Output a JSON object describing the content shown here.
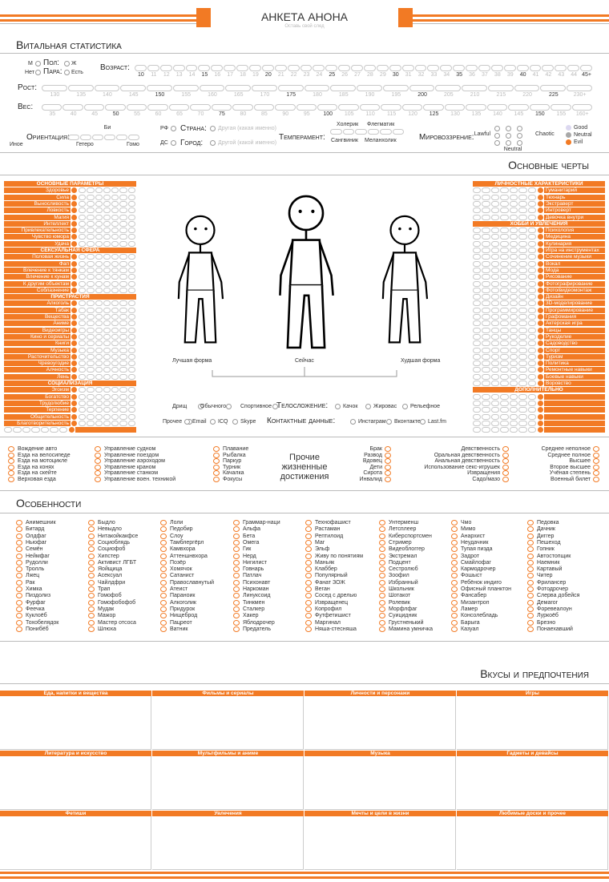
{
  "header": {
    "title": "АНКЕТА АНОНА",
    "subtitle": "Оставь свой след"
  },
  "vital": {
    "title": "Витальная статистика",
    "sex": {
      "label": "Пол:",
      "options": [
        "М",
        "Ж"
      ]
    },
    "pair": {
      "label": "Пара:",
      "options": [
        "Нет",
        "Есть"
      ]
    },
    "age": {
      "label": "Возраст:",
      "ticks": [
        10,
        11,
        12,
        13,
        14,
        15,
        16,
        17,
        18,
        19,
        20,
        21,
        22,
        23,
        24,
        25,
        26,
        27,
        28,
        29,
        30,
        31,
        32,
        33,
        34,
        35,
        36,
        37,
        38,
        39,
        40,
        41,
        42,
        43,
        44,
        "45+"
      ]
    },
    "height": {
      "label": "Рост:",
      "ticks": [
        130,
        135,
        140,
        145,
        150,
        155,
        160,
        165,
        170,
        175,
        180,
        185,
        190,
        195,
        200,
        205,
        210,
        215,
        220,
        225,
        "230+"
      ]
    },
    "weight": {
      "label": "Вес:",
      "ticks": [
        35,
        40,
        45,
        50,
        55,
        60,
        65,
        70,
        75,
        80,
        85,
        90,
        95,
        100,
        105,
        110,
        115,
        120,
        125,
        130,
        135,
        140,
        145,
        150,
        155,
        "160+"
      ]
    },
    "orientation": {
      "label": "Ориентация:",
      "options": [
        "Би",
        "Иное",
        "Гетеро",
        "Гомо"
      ]
    },
    "country": {
      "label": "Страна:",
      "options": [
        "РФ",
        "Другая (какая именно)"
      ]
    },
    "city": {
      "label": "Город:",
      "options": [
        "ДС",
        "Другой (какой именно)"
      ]
    },
    "temperament": {
      "label": "Темперамент:",
      "options": [
        "Холерик",
        "Флегматик",
        "Сангвиник",
        "Меланхолик"
      ]
    },
    "alignment": {
      "label": "Мировоззрение:",
      "axis": [
        "Lawful",
        "Chaotic",
        "Neutral"
      ],
      "morals": [
        "Good",
        "Neutral",
        "Evil"
      ]
    }
  },
  "traits": {
    "title": "Основные черты",
    "left": [
      {
        "header": "ОСНОВНЫЕ ПАРАМЕТРЫ",
        "items": [
          "Здоровье",
          "Сила",
          "Выносливость",
          "Ловкость",
          "Магия",
          "Интеллект",
          "Привлекательность",
          "Чувство юмора",
          "Удача"
        ]
      },
      {
        "header": "СЕКСУАЛЬНАЯ СФЕРА",
        "items": [
          "Половая жизнь",
          "Фап",
          "Влечение к тянкам",
          "Влечение к кунам",
          "К другим объектам",
          "Соблазнение"
        ]
      },
      {
        "header": "ПРИСТРАСТИЯ",
        "items": [
          "Алкоголь",
          "Табак",
          "Вещества",
          "Аниме",
          "Видеоигры",
          "Кино и сериалы",
          "Книги",
          "Музыка",
          "Расточительство",
          "Чревоугодие",
          "Алчность",
          "Лень"
        ]
      },
      {
        "header": "СОЦИАЛИЗАЦИЯ",
        "items": [
          "Эгоизм",
          "Богатство",
          "Трудолюбие",
          "Терпение",
          "Общительность",
          "Благотворительность"
        ]
      }
    ],
    "right": [
      {
        "header": "ЛИЧНОСТНЫЕ ХАРАКТЕРИСТИКИ",
        "items": [
          "Гуманитарий",
          "Технарь",
          "Экстраверт",
          "Интроверт",
          "Девочка внутри"
        ]
      },
      {
        "header": "ХОББИ И УВЛЕЧЕНИЯ",
        "items": [
          "Психология",
          "Медицина",
          "Кулинария",
          "Игра на инструментах",
          "Сочинение музыки",
          "Вокал",
          "Мода",
          "Рисование",
          "Фотографирование",
          "Фото/видеомонтаж",
          "Дизайн",
          "3D-моделирование",
          "Программирование",
          "Графомания",
          "Актерская игра",
          "Танцы",
          "Рукоделие",
          "Садоводство",
          "Спорт",
          "Туризм",
          "Политика",
          "Ремонтные навыки",
          "Боевые навыки",
          "Воровство"
        ]
      },
      {
        "header": "ДОПОЛНИТЕЛЬНО",
        "items": []
      }
    ],
    "figures": [
      "Лучшая форма",
      "Сейчас",
      "Худшая форма"
    ],
    "build": {
      "label": "Телосложение:",
      "options": [
        "Дрищ",
        "Обычного",
        "Спортивное",
        "Качок",
        "Жировас",
        "Рельефное"
      ]
    },
    "contacts": {
      "label": "Контактные данные:",
      "options": [
        "Прочее",
        "Email",
        "ICQ",
        "Skype",
        "Инстаграм",
        "Вконтакте",
        "Last.fm"
      ]
    }
  },
  "achievements": {
    "title": "Прочие жизненные достижения",
    "columns": [
      [
        "Вождение авто",
        "Езда на велосипеде",
        "Езда на мотоцикле",
        "Езда на конях",
        "Езда на скейте",
        "Верховая езда"
      ],
      [
        "Управление судном",
        "Управление поездом",
        "Управление аэроходом",
        "Управление краном",
        "Управление станком",
        "Управление воен. техникой"
      ],
      [
        "Плавание",
        "Рыбалка",
        "Паркур",
        "Турник",
        "Качалка",
        "Фокусы"
      ],
      [
        "Брак",
        "Развод",
        "Вдовец",
        "Дети",
        "Сирота",
        "Инвалид"
      ],
      [
        "Девственность",
        "Оральная девственность",
        "Анальная девственность",
        "Использование секс-игрушек",
        "Извращения",
        "Садо/мазо"
      ],
      [
        "Среднее неполное",
        "Среднее полное",
        "Высшее",
        "Второе высшее",
        "Учёная степень",
        "Военный билет"
      ]
    ]
  },
  "features": {
    "title": "Особенности",
    "columns": [
      [
        "Анимешник",
        "Битард",
        "Олдфаг",
        "Ньюфаг",
        "Семён",
        "Неймфаг",
        "Рудолли",
        "Тролль",
        "Лжец",
        "Рак",
        "Химка",
        "Пиздолиз",
        "Фурфаг",
        "Феечка",
        "Куклоёб",
        "Тохобелядок",
        "Понибёб"
      ],
      [
        "Быдло",
        "Невыдло",
        "Нитакойкакфсе",
        "Социоблядь",
        "Социофоб",
        "Хипстер",
        "Активист ЛГБТ",
        "Яойщица",
        "Асексуал",
        "Чайлдфри",
        "Трап",
        "Гомофоб",
        "Гомофобофоб",
        "Мудак",
        "Мажор",
        "Мастер отсоса",
        "Шлюха"
      ],
      [
        "Лоли",
        "Педобир",
        "Слоу",
        "Тамблергёрл",
        "Камвхора",
        "Аттеншнвхора",
        "Позёр",
        "Хомячок",
        "Сатанист",
        "Православнутый",
        "Атеист",
        "Параноик",
        "Алкоголик",
        "Придурок",
        "Нищеброд",
        "Пацреот",
        "Ватник"
      ],
      [
        "Граммар-наци",
        "Альфа",
        "Бета",
        "Омега",
        "Гик",
        "Нерд",
        "Нигилист",
        "Говнарь",
        "Патлач",
        "Психонавт",
        "Наркоман",
        "Линуксоид",
        "Тинкмен",
        "Сталкер",
        "Хакер",
        "Яблодрочер",
        "Предатель"
      ],
      [
        "Технофашист",
        "Растаман",
        "Рептилоид",
        "Маг",
        "Эльф",
        "Живу по понятиям",
        "Маньяк",
        "Клаббер",
        "Популярный",
        "Фанат ЗОЖ",
        "Веган",
        "Сосед с дрелью",
        "Извращенец",
        "Копрофил",
        "Футфетишист",
        "Маргинал",
        "Няша-стесняша"
      ],
      [
        "Унтерменш",
        "Летсплеер",
        "Киберспортсмен",
        "Стример",
        "Видеоблоггер",
        "Экстремал",
        "Подцент",
        "Сестролюб",
        "Зоофил",
        "Избранный",
        "Школьник",
        "Шотакот",
        "Ролевик",
        "Морфлфаг",
        "Суицидник",
        "Грустненький",
        "Мамина умничка"
      ],
      [
        "Чмо",
        "Мимо",
        "Анархист",
        "Неудачник",
        "Тупая пизда",
        "Задрот",
        "Смайлофаг",
        "Кармодрочер",
        "Фошыст",
        "Ребёнок индиго",
        "Офисный планктон",
        "Фансабер",
        "Мизантроп",
        "Ламер",
        "Консолебладь",
        "Барыга",
        "Казуал"
      ],
      [
        "Педовка",
        "Дачник",
        "Диггер",
        "Пешеход",
        "Гопник",
        "Автостопщик",
        "Наемник",
        "Картавый",
        "Читер",
        "Фрилансер",
        "Фотодрочер",
        "Слерва добейся",
        "Демагог",
        "Форевеалоун",
        "Луркоёб",
        "Брезно",
        "Понаехавший"
      ]
    ]
  },
  "tastes": {
    "title": "Вкусы и предпочтения",
    "boxes": [
      "Еда, напитки и вещества",
      "Фильмы и сериалы",
      "Личности и персонажи",
      "Игры",
      "Литература и искусство",
      "Мультфильмы и аниме",
      "Музыка",
      "Гаджеты и девайсы",
      "Фетиши",
      "Увлечения",
      "Мечты и цели в жизни",
      "Любимые доски и прочее"
    ]
  }
}
